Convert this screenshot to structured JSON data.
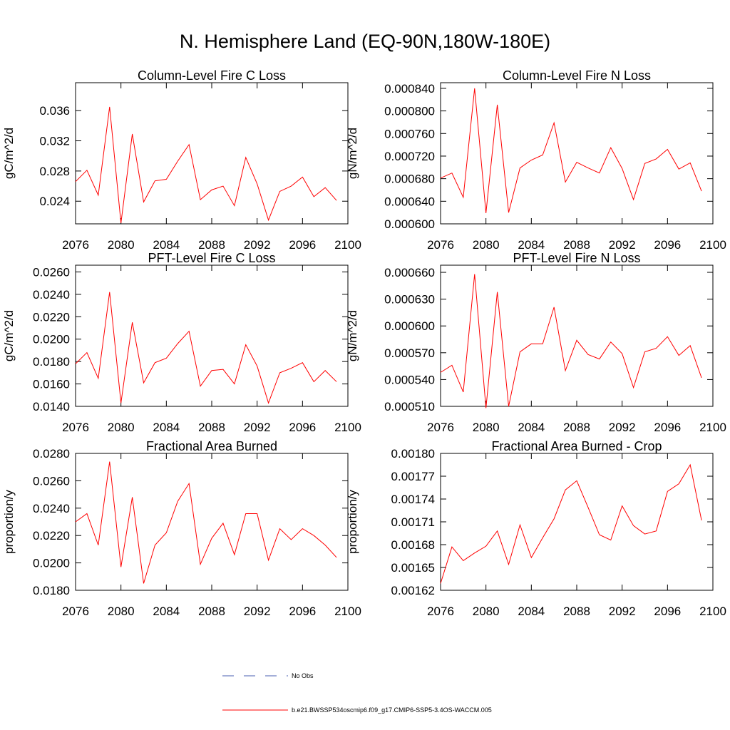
{
  "title": "N. Hemisphere Land (EQ-90N,180W-180E)",
  "legend": [
    {
      "name": "No Obs",
      "color": "#4a5fb0",
      "dash": true
    },
    {
      "name": "b.e21.BWSSP534oscmip6.f09_g17.CMIP6-SSP5-3.4OS-WACCM.005",
      "color": "#ff0000",
      "dash": false
    }
  ],
  "chart_data": [
    {
      "type": "line",
      "title": "Column-Level Fire C Loss",
      "y_label": "gC/m^2/d",
      "color": "#ff0000",
      "x": [
        2076,
        2077,
        2078,
        2079,
        2080,
        2081,
        2082,
        2083,
        2084,
        2085,
        2086,
        2087,
        2088,
        2089,
        2090,
        2091,
        2092,
        2093,
        2094,
        2095,
        2096,
        2097,
        2098,
        2099
      ],
      "values": [
        0.0266,
        0.0281,
        0.0248,
        0.0365,
        0.0211,
        0.0329,
        0.0239,
        0.0267,
        0.0269,
        0.0293,
        0.0315,
        0.0242,
        0.0255,
        0.026,
        0.0234,
        0.0298,
        0.0263,
        0.0215,
        0.0253,
        0.026,
        0.0272,
        0.0246,
        0.0258,
        0.0241
      ],
      "xlim": [
        2076,
        2100
      ],
      "xticks": [
        2076,
        2080,
        2084,
        2088,
        2092,
        2096,
        2100
      ],
      "ylim": [
        0.021,
        0.0397
      ],
      "yticks": [
        0.024,
        0.028,
        0.032,
        0.036
      ]
    },
    {
      "type": "line",
      "title": "Column-Level Fire N Loss",
      "y_label": "gN/m^2/d",
      "color": "#ff0000",
      "x": [
        2076,
        2077,
        2078,
        2079,
        2080,
        2081,
        2082,
        2083,
        2084,
        2085,
        2086,
        2087,
        2088,
        2089,
        2090,
        2091,
        2092,
        2093,
        2094,
        2095,
        2096,
        2097,
        2098,
        2099
      ],
      "values": [
        0.000681,
        0.00069,
        0.000647,
        0.00084,
        0.000619,
        0.000811,
        0.00062,
        0.000699,
        0.000713,
        0.000722,
        0.000779,
        0.000674,
        0.000709,
        0.000699,
        0.00069,
        0.000735,
        0.000698,
        0.000643,
        0.000707,
        0.000715,
        0.000732,
        0.000697,
        0.000708,
        0.000658
      ],
      "xlim": [
        2076,
        2100
      ],
      "xticks": [
        2076,
        2080,
        2084,
        2088,
        2092,
        2096,
        2100
      ],
      "ylim": [
        0.0006,
        0.00085
      ],
      "yticks": [
        {
          "value": 0.0006,
          "label": "0.000600"
        },
        {
          "value": 0.00064,
          "label": "0.000640"
        },
        {
          "value": 0.00068,
          "label": "0.000680"
        },
        {
          "value": 0.00072,
          "label": "0.000720"
        },
        {
          "value": 0.00076,
          "label": "0.000760"
        },
        {
          "value": 0.0008,
          "label": "0.000800"
        },
        {
          "value": 0.00084,
          "label": "0.000840"
        }
      ]
    },
    {
      "type": "line",
      "title": "PFT-Level Fire C Loss",
      "y_label": "gC/m^2/d",
      "color": "#ff0000",
      "x": [
        2076,
        2077,
        2078,
        2079,
        2080,
        2081,
        2082,
        2083,
        2084,
        2085,
        2086,
        2087,
        2088,
        2089,
        2090,
        2091,
        2092,
        2093,
        2094,
        2095,
        2096,
        2097,
        2098,
        2099
      ],
      "values": [
        0.0178,
        0.0188,
        0.0165,
        0.0242,
        0.0143,
        0.0215,
        0.0161,
        0.0179,
        0.0183,
        0.0196,
        0.0207,
        0.0158,
        0.0172,
        0.0173,
        0.016,
        0.0195,
        0.0176,
        0.0143,
        0.017,
        0.0174,
        0.0179,
        0.0162,
        0.0172,
        0.0162
      ],
      "xlim": [
        2076,
        2100
      ],
      "xticks": [
        2076,
        2080,
        2084,
        2088,
        2092,
        2096,
        2100
      ],
      "ylim": [
        0.014,
        0.0266
      ],
      "yticks": [
        {
          "value": 0.014,
          "label": "0.0140"
        },
        {
          "value": 0.016,
          "label": "0.0160"
        },
        {
          "value": 0.018,
          "label": "0.0180"
        },
        {
          "value": 0.02,
          "label": "0.0200"
        },
        {
          "value": 0.022,
          "label": "0.0220"
        },
        {
          "value": 0.024,
          "label": "0.0240"
        },
        {
          "value": 0.026,
          "label": "0.0260"
        }
      ]
    },
    {
      "type": "line",
      "title": "PFT-Level Fire N Loss",
      "y_label": "gN/m^2/d",
      "color": "#ff0000",
      "x": [
        2076,
        2077,
        2078,
        2079,
        2080,
        2081,
        2082,
        2083,
        2084,
        2085,
        2086,
        2087,
        2088,
        2089,
        2090,
        2091,
        2092,
        2093,
        2094,
        2095,
        2096,
        2097,
        2098,
        2099
      ],
      "values": [
        0.000548,
        0.000556,
        0.000526,
        0.000658,
        0.000508,
        0.000638,
        0.00051,
        0.000571,
        0.00058,
        0.00058,
        0.000621,
        0.00055,
        0.000584,
        0.000568,
        0.000563,
        0.000582,
        0.000569,
        0.000531,
        0.000571,
        0.000575,
        0.000588,
        0.000567,
        0.000578,
        0.000542
      ],
      "xlim": [
        2076,
        2100
      ],
      "xticks": [
        2076,
        2080,
        2084,
        2088,
        2092,
        2096,
        2100
      ],
      "ylim": [
        0.00051,
        0.000668
      ],
      "yticks": [
        {
          "value": 0.00051,
          "label": "0.000510"
        },
        {
          "value": 0.00054,
          "label": "0.000540"
        },
        {
          "value": 0.00057,
          "label": "0.000570"
        },
        {
          "value": 0.0006,
          "label": "0.000600"
        },
        {
          "value": 0.00063,
          "label": "0.000630"
        },
        {
          "value": 0.00066,
          "label": "0.000660"
        }
      ]
    },
    {
      "type": "line",
      "title": "Fractional Area Burned",
      "y_label": "proportion/y",
      "color": "#ff0000",
      "x": [
        2076,
        2077,
        2078,
        2079,
        2080,
        2081,
        2082,
        2083,
        2084,
        2085,
        2086,
        2087,
        2088,
        2089,
        2090,
        2091,
        2092,
        2093,
        2094,
        2095,
        2096,
        2097,
        2098,
        2099
      ],
      "values": [
        0.023,
        0.0236,
        0.0213,
        0.0274,
        0.0197,
        0.0248,
        0.0185,
        0.0213,
        0.0222,
        0.0245,
        0.0258,
        0.0199,
        0.0218,
        0.0229,
        0.0206,
        0.0236,
        0.0236,
        0.0202,
        0.0225,
        0.0217,
        0.0225,
        0.022,
        0.0213,
        0.0204
      ],
      "xlim": [
        2076,
        2100
      ],
      "xticks": [
        2076,
        2080,
        2084,
        2088,
        2092,
        2096,
        2100
      ],
      "ylim": [
        0.018,
        0.028
      ],
      "yticks": [
        {
          "value": 0.018,
          "label": "0.0180"
        },
        {
          "value": 0.02,
          "label": "0.0200"
        },
        {
          "value": 0.022,
          "label": "0.0220"
        },
        {
          "value": 0.024,
          "label": "0.0240"
        },
        {
          "value": 0.026,
          "label": "0.0260"
        },
        {
          "value": 0.028,
          "label": "0.0280"
        }
      ]
    },
    {
      "type": "line",
      "title": "Fractional Area Burned - Crop",
      "y_label": "proportion/y",
      "color": "#ff0000",
      "x": [
        2076,
        2077,
        2078,
        2079,
        2080,
        2081,
        2082,
        2083,
        2084,
        2085,
        2086,
        2087,
        2088,
        2089,
        2090,
        2091,
        2092,
        2093,
        2094,
        2095,
        2096,
        2097,
        2098,
        2099
      ],
      "values": [
        0.001629,
        0.001677,
        0.001659,
        0.001669,
        0.001678,
        0.001698,
        0.001654,
        0.001706,
        0.001663,
        0.001689,
        0.001714,
        0.001752,
        0.001764,
        0.001729,
        0.001693,
        0.001686,
        0.001731,
        0.001705,
        0.001694,
        0.001698,
        0.00175,
        0.00176,
        0.001785,
        0.001712
      ],
      "xlim": [
        2076,
        2100
      ],
      "xticks": [
        2076,
        2080,
        2084,
        2088,
        2092,
        2096,
        2100
      ],
      "ylim": [
        0.00162,
        0.0018
      ],
      "yticks": [
        0.00162,
        0.00165,
        0.00168,
        0.00171,
        0.00174,
        0.00177,
        {
          "value": 0.0018,
          "label": "0.00180"
        }
      ]
    }
  ]
}
